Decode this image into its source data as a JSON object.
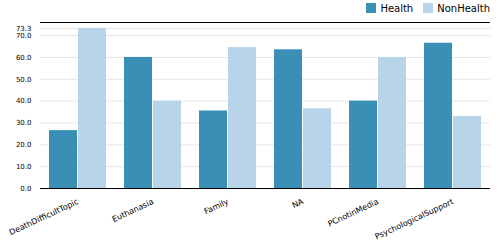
{
  "chart_data": {
    "type": "bar",
    "categories": [
      "DeathDifficultTopic",
      "Euthanasia",
      "Family",
      "NA",
      "PCnotinMedia",
      "PsychologicalSupport"
    ],
    "series": [
      {
        "name": "Health",
        "color": "#3a8fb5",
        "values": [
          26.5,
          60.0,
          35.5,
          63.5,
          40.0,
          66.5
        ]
      },
      {
        "name": "NonHealth",
        "color": "#b8d4e8",
        "values": [
          73.3,
          40.0,
          64.5,
          36.5,
          60.0,
          33.0
        ]
      }
    ],
    "ylim": [
      0,
      76
    ],
    "yticks": [
      {
        "value": 0,
        "label": "0.0"
      },
      {
        "value": 10,
        "label": "10.0"
      },
      {
        "value": 20,
        "label": "20.0"
      },
      {
        "value": 30,
        "label": "30.0"
      },
      {
        "value": 40,
        "label": "40.0"
      },
      {
        "value": 50,
        "label": "50.0"
      },
      {
        "value": 60,
        "label": "60.0"
      },
      {
        "value": 70,
        "label": "70.0"
      },
      73.3
    ],
    "grid": true,
    "legend": "upper right"
  }
}
